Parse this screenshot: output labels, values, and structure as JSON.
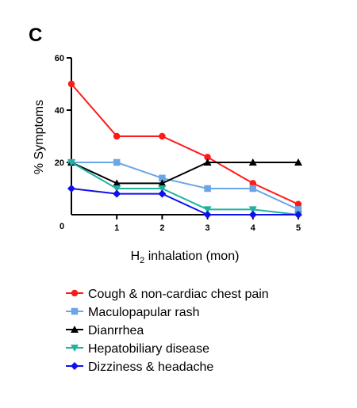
{
  "panel_label": "C",
  "chart_data": {
    "type": "line",
    "title": "",
    "xlabel_main": "H",
    "xlabel_sub": "2",
    "xlabel_rest": " inhalation (mon)",
    "ylabel": "% Symptoms",
    "x": [
      0,
      1,
      2,
      3,
      4,
      5
    ],
    "xlim": [
      0,
      5
    ],
    "ylim": [
      0,
      60
    ],
    "x_ticks": [
      "0",
      "1",
      "2",
      "3",
      "4",
      "5"
    ],
    "y_ticks": [
      "20",
      "40",
      "60"
    ],
    "grid": false,
    "legend_position": "bottom",
    "series": [
      {
        "name": "Cough & non-cardiac chest pain",
        "values": [
          50,
          30,
          30,
          22,
          12,
          4
        ],
        "color": "#ff1a1a",
        "marker": "circle"
      },
      {
        "name": "Maculopapular rash",
        "values": [
          20,
          20,
          14,
          10,
          10,
          2
        ],
        "color": "#6aa6e6",
        "marker": "square"
      },
      {
        "name": "Dianrrhea",
        "values": [
          20,
          12,
          12,
          20,
          20,
          20
        ],
        "color": "#000000",
        "marker": "triangle-up"
      },
      {
        "name": "Hepatobiliary disease",
        "values": [
          20,
          10,
          10,
          2,
          2,
          0
        ],
        "color": "#20b2a0",
        "marker": "triangle-down"
      },
      {
        "name": "Dizziness & headache",
        "values": [
          10,
          8,
          8,
          0,
          0,
          0
        ],
        "color": "#1010ee",
        "marker": "diamond"
      }
    ]
  }
}
